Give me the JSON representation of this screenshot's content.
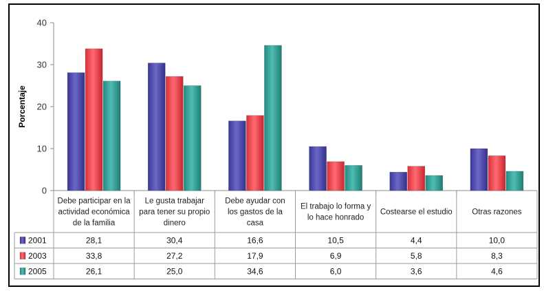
{
  "chart_data": {
    "type": "bar",
    "title": "",
    "xlabel": "",
    "ylabel": "Porcentaje",
    "ylim": [
      0,
      40
    ],
    "yticks": [
      0,
      10,
      20,
      30,
      40
    ],
    "grid": false,
    "legend": "table-rows-below",
    "categories": [
      [
        "Debe participar en la",
        "actividad económica",
        "de la familia"
      ],
      [
        "Le gusta trabajar",
        "para tener su propio",
        "dinero"
      ],
      [
        "Debe ayudar con",
        "los gastos de la",
        "casa"
      ],
      [
        "El trabajo lo forma y",
        "lo hace honrado"
      ],
      [
        "Costearse el estudio"
      ],
      [
        "Otras razones"
      ]
    ],
    "series": [
      {
        "name": "2001",
        "color": "#4b47a8",
        "values": [
          28.1,
          30.4,
          16.6,
          10.5,
          4.4,
          10.0
        ],
        "labels": [
          "28,1",
          "30,4",
          "16,6",
          "10,5",
          "4,4",
          "10,0"
        ]
      },
      {
        "name": "2003",
        "color": "#ef3e48",
        "values": [
          33.8,
          27.2,
          17.9,
          6.9,
          5.8,
          8.3
        ],
        "labels": [
          "33,8",
          "27,2",
          "17,9",
          "6,9",
          "5,8",
          "8,3"
        ]
      },
      {
        "name": "2005",
        "color": "#2f9b92",
        "values": [
          26.1,
          25.0,
          34.6,
          6.0,
          3.6,
          4.6
        ],
        "labels": [
          "26,1",
          "25,0",
          "34,6",
          "6,0",
          "3,6",
          "4,6"
        ]
      }
    ]
  }
}
